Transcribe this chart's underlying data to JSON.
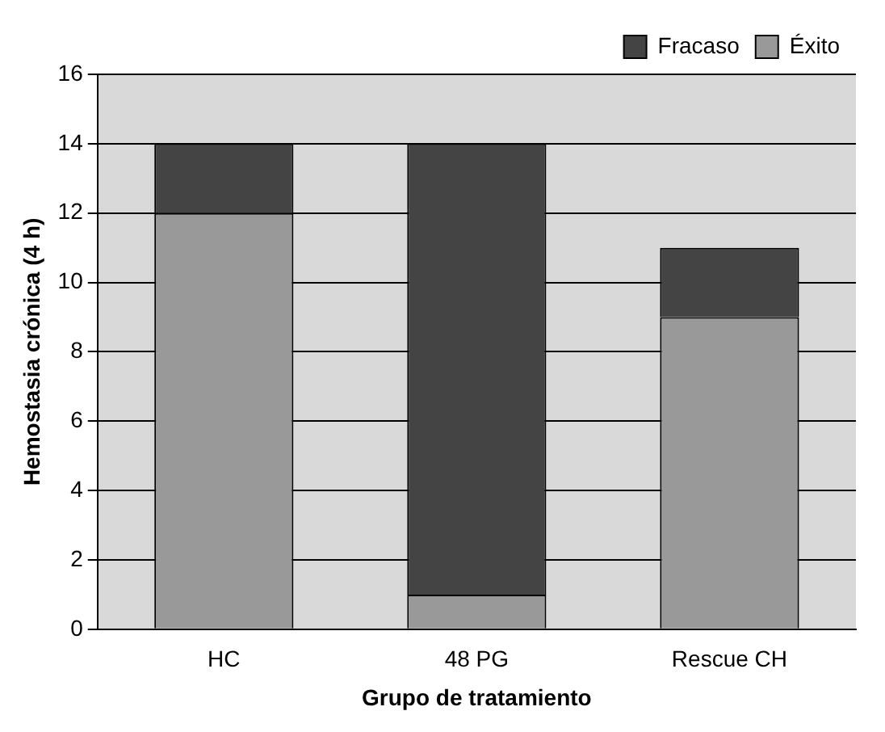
{
  "chart_data": {
    "type": "bar",
    "stacked": true,
    "xlabel": "Grupo de tratamiento",
    "ylabel": "Hemostasia crónica (4 h)",
    "categories": [
      "HC",
      "48 PG",
      "Rescue CH"
    ],
    "series": [
      {
        "name": "Éxito",
        "color": "#999999",
        "values": [
          12,
          1,
          9
        ]
      },
      {
        "name": "Fracaso",
        "color": "#444444",
        "values": [
          2,
          13,
          2
        ]
      }
    ],
    "ylim": [
      0,
      16
    ],
    "yticks": [
      0,
      2,
      4,
      6,
      8,
      10,
      12,
      14,
      16
    ],
    "grid": "y",
    "legend": "top right"
  }
}
